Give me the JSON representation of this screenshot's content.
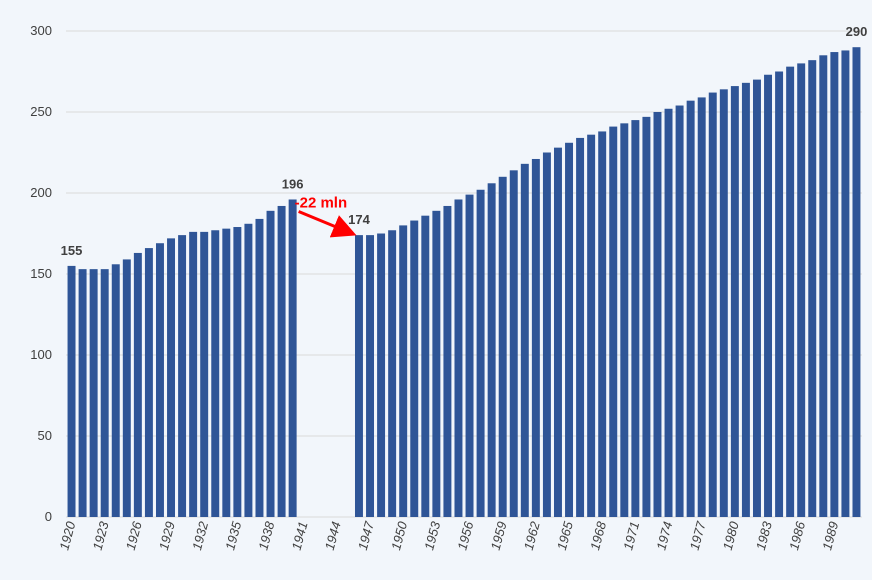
{
  "chart_data": {
    "type": "bar",
    "title": "",
    "xlabel": "",
    "ylabel": "",
    "ylim": [
      0,
      300
    ],
    "y_ticks": [
      0,
      50,
      100,
      150,
      200,
      250,
      300
    ],
    "grid": "horizontal",
    "x_tick_labels": [
      "1920",
      "1923",
      "1926",
      "1929",
      "1932",
      "1935",
      "1938",
      "1941",
      "1944",
      "1947",
      "1950",
      "1953",
      "1956",
      "1959",
      "1962",
      "1965",
      "1968",
      "1971",
      "1974",
      "1977",
      "1980",
      "1983",
      "1986",
      "1989"
    ],
    "colors": {
      "bar": "#2f5597",
      "annotation": "#ff0000",
      "grid": "#d9d9d9"
    },
    "series": [
      {
        "x": [
          1920,
          1921,
          1922,
          1923,
          1924,
          1925,
          1926,
          1927,
          1928,
          1929,
          1930,
          1931,
          1932,
          1933,
          1934,
          1935,
          1936,
          1937,
          1938,
          1939,
          1940,
          1946,
          1947,
          1948,
          1949,
          1950,
          1951,
          1952,
          1953,
          1954,
          1955,
          1956,
          1957,
          1958,
          1959,
          1960,
          1961,
          1962,
          1963,
          1964,
          1965,
          1966,
          1967,
          1968,
          1969,
          1970,
          1971,
          1972,
          1973,
          1974,
          1975,
          1976,
          1977,
          1978,
          1979,
          1980,
          1981,
          1982,
          1983,
          1984,
          1985,
          1986,
          1987,
          1988,
          1989,
          1990,
          1991
        ],
        "values": [
          155,
          153,
          153,
          153,
          156,
          159,
          163,
          166,
          169,
          172,
          174,
          176,
          176,
          177,
          178,
          179,
          181,
          184,
          189,
          192,
          196,
          174,
          174,
          175,
          177,
          180,
          183,
          186,
          189,
          192,
          196,
          199,
          202,
          206,
          210,
          214,
          218,
          221,
          225,
          228,
          231,
          234,
          236,
          238,
          241,
          243,
          245,
          247,
          250,
          252,
          254,
          257,
          259,
          262,
          264,
          266,
          268,
          270,
          273,
          275,
          278,
          280,
          282,
          285,
          287,
          288,
          290
        ]
      }
    ],
    "data_labels": [
      {
        "x": 1920,
        "text": "155"
      },
      {
        "x": 1940,
        "text": "196"
      },
      {
        "x": 1946,
        "text": "174"
      },
      {
        "x": 1991,
        "text": "290"
      }
    ],
    "annotation": {
      "text": "-22 mln",
      "from_x": 1940,
      "to_x": 1946
    }
  }
}
